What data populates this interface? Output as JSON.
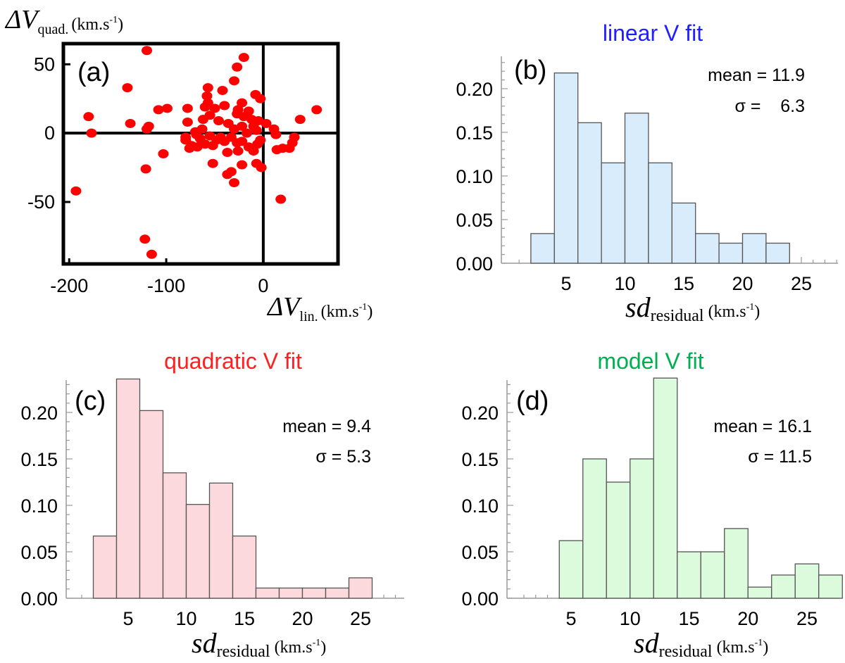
{
  "chart_data": [
    {
      "id": "a",
      "type": "scatter",
      "panel_label": "(a)",
      "title": "",
      "xlabel_symbol": "ΔV",
      "xlabel_sub": "lin.",
      "xlabel_unit": "(km.s",
      "xlabel_exp": "-1",
      "xlabel_close": ")",
      "ylabel_symbol": "ΔV",
      "ylabel_sub": "quad.",
      "ylabel_unit": "(km.s",
      "ylabel_exp": "-1",
      "ylabel_close": ")",
      "xlim": [
        -206,
        77
      ],
      "ylim": [
        -95,
        65
      ],
      "xticks": [
        -200,
        -100,
        0
      ],
      "xtick_labels": [
        "-200",
        "-100",
        "0"
      ],
      "yticks": [
        50,
        0,
        -50
      ],
      "ytick_labels": [
        "50",
        "0",
        "-50"
      ],
      "point_color": "#ff0000",
      "points": [
        [
          -120,
          60
        ],
        [
          -20,
          55
        ],
        [
          -140,
          33
        ],
        [
          -27,
          48
        ],
        [
          -30,
          38
        ],
        [
          -57,
          33
        ],
        [
          -58,
          27
        ],
        [
          -42,
          31
        ],
        [
          -57,
          22
        ],
        [
          -22,
          22
        ],
        [
          -3,
          25
        ],
        [
          -8,
          28
        ],
        [
          -26,
          17
        ],
        [
          -40,
          20
        ],
        [
          -50,
          18
        ],
        [
          -60,
          19
        ],
        [
          -78,
          18
        ],
        [
          -99,
          18
        ],
        [
          -108,
          17
        ],
        [
          -137,
          7
        ],
        [
          -180,
          12
        ],
        [
          -177,
          0
        ],
        [
          -118,
          5
        ],
        [
          -120,
          3
        ],
        [
          -27,
          14
        ],
        [
          -20,
          12
        ],
        [
          -15,
          16
        ],
        [
          -12,
          10
        ],
        [
          -5,
          9
        ],
        [
          -10,
          5
        ],
        [
          3,
          7
        ],
        [
          -7,
          2
        ],
        [
          11,
          3
        ],
        [
          13,
          -1
        ],
        [
          -17,
          0
        ],
        [
          -22,
          5
        ],
        [
          -30,
          3
        ],
        [
          -36,
          7
        ],
        [
          -46,
          9
        ],
        [
          -55,
          13
        ],
        [
          -62,
          10
        ],
        [
          -63,
          3
        ],
        [
          -70,
          1
        ],
        [
          -78,
          8
        ],
        [
          -80,
          -5
        ],
        [
          -65,
          -4
        ],
        [
          -55,
          -2
        ],
        [
          -48,
          -5
        ],
        [
          -40,
          -6
        ],
        [
          -33,
          -3
        ],
        [
          -27,
          -7
        ],
        [
          -22,
          -6
        ],
        [
          -15,
          -10
        ],
        [
          -10,
          -13
        ],
        [
          -6,
          -8
        ],
        [
          -3,
          -5
        ],
        [
          14,
          -12
        ],
        [
          27,
          -11
        ],
        [
          30,
          -7
        ],
        [
          32,
          -3
        ],
        [
          20,
          -11
        ],
        [
          38,
          10
        ],
        [
          55,
          17
        ],
        [
          -2,
          -25
        ],
        [
          -7,
          -22
        ],
        [
          -22,
          -23
        ],
        [
          -33,
          -28
        ],
        [
          -37,
          -30
        ],
        [
          -30,
          -36
        ],
        [
          -52,
          -22
        ],
        [
          -60,
          -8
        ],
        [
          -68,
          -10
        ],
        [
          -74,
          -9
        ],
        [
          -76,
          -11
        ],
        [
          -80,
          -3
        ],
        [
          -69,
          -1
        ],
        [
          -103,
          -15
        ],
        [
          -121,
          -26
        ],
        [
          -193,
          -42
        ],
        [
          18,
          -48
        ],
        [
          -122,
          -77
        ],
        [
          -115,
          -88
        ],
        [
          -44,
          -3
        ],
        [
          -52,
          -9
        ],
        [
          -37,
          -14
        ],
        [
          -26,
          -13
        ]
      ]
    },
    {
      "id": "b",
      "type": "bar",
      "panel_label": "(b)",
      "title": "linear V fit",
      "title_color": "#1f1fff",
      "fill_color": "#d9ecfb",
      "stroke_color": "#555555",
      "bin_edges": [
        2,
        4,
        6,
        8,
        10,
        12,
        14,
        16,
        18,
        20,
        22,
        24
      ],
      "values": [
        0.034,
        0.218,
        0.161,
        0.115,
        0.172,
        0.115,
        0.069,
        0.034,
        0.023,
        0.034,
        0.023
      ],
      "xlim": [
        0,
        28.5
      ],
      "ylim": [
        0,
        0.235
      ],
      "xticks": [
        5,
        10,
        15,
        20,
        25
      ],
      "xtick_labels": [
        "5",
        "10",
        "15",
        "20",
        "25"
      ],
      "yticks": [
        0,
        0.05,
        0.1,
        0.15,
        0.2
      ],
      "ytick_labels": [
        "0.00",
        "0.05",
        "0.10",
        "0.15",
        "0.20"
      ],
      "stat_mean_label": "mean = 11.9",
      "stat_sigma_label": "σ =    6.3",
      "xlabel_main": "sd",
      "xlabel_sub": "residual",
      "xlabel_unit": "(km.s",
      "xlabel_exp": "-1",
      "xlabel_close": ")"
    },
    {
      "id": "c",
      "type": "bar",
      "panel_label": "(c)",
      "title": "quadratic V fit",
      "title_color": "#ff1f1f",
      "fill_color": "#fcd9dc",
      "stroke_color": "#555555",
      "bin_edges": [
        2,
        4,
        6,
        8,
        10,
        12,
        14,
        16,
        18,
        20,
        22,
        24,
        26
      ],
      "values": [
        0.067,
        0.236,
        0.202,
        0.135,
        0.101,
        0.124,
        0.067,
        0.011,
        0.011,
        0.011,
        0.011,
        0.022
      ],
      "xlim": [
        0,
        29
      ],
      "ylim": [
        0,
        0.245
      ],
      "xticks": [
        5,
        10,
        15,
        20,
        25
      ],
      "xtick_labels": [
        "5",
        "10",
        "15",
        "20",
        "25"
      ],
      "yticks": [
        0,
        0.05,
        0.1,
        0.15,
        0.2
      ],
      "ytick_labels": [
        "0.00",
        "0.05",
        "0.10",
        "0.15",
        "0.20"
      ],
      "stat_mean_label": "mean = 9.4",
      "stat_sigma_label": "σ = 5.3",
      "xlabel_main": "sd",
      "xlabel_sub": "residual",
      "xlabel_unit": "(km.s",
      "xlabel_exp": "-1",
      "xlabel_close": ")"
    },
    {
      "id": "d",
      "type": "bar",
      "panel_label": "(d)",
      "title": "model V fit",
      "title_color": "#00b050",
      "fill_color": "#dcfadc",
      "stroke_color": "#555555",
      "bin_edges": [
        4,
        6,
        8,
        10,
        12,
        14,
        16,
        18,
        20,
        22,
        24,
        26,
        28
      ],
      "values": [
        0.062,
        0.15,
        0.125,
        0.15,
        0.237,
        0.05,
        0.05,
        0.075,
        0.012,
        0.025,
        0.037,
        0.025
      ],
      "xlim": [
        0,
        28.5
      ],
      "ylim": [
        0,
        0.245
      ],
      "xticks": [
        5,
        10,
        15,
        20,
        25
      ],
      "xtick_labels": [
        "5",
        "10",
        "15",
        "20",
        "25"
      ],
      "yticks": [
        0,
        0.05,
        0.1,
        0.15,
        0.2
      ],
      "ytick_labels": [
        "0.00",
        "0.05",
        "0.10",
        "0.15",
        "0.20"
      ],
      "stat_mean_label": "mean = 16.1",
      "stat_sigma_label": "σ = 11.5",
      "xlabel_main": "sd",
      "xlabel_sub": "residual",
      "xlabel_unit": "(km.s",
      "xlabel_exp": "-1",
      "xlabel_close": ")"
    }
  ]
}
